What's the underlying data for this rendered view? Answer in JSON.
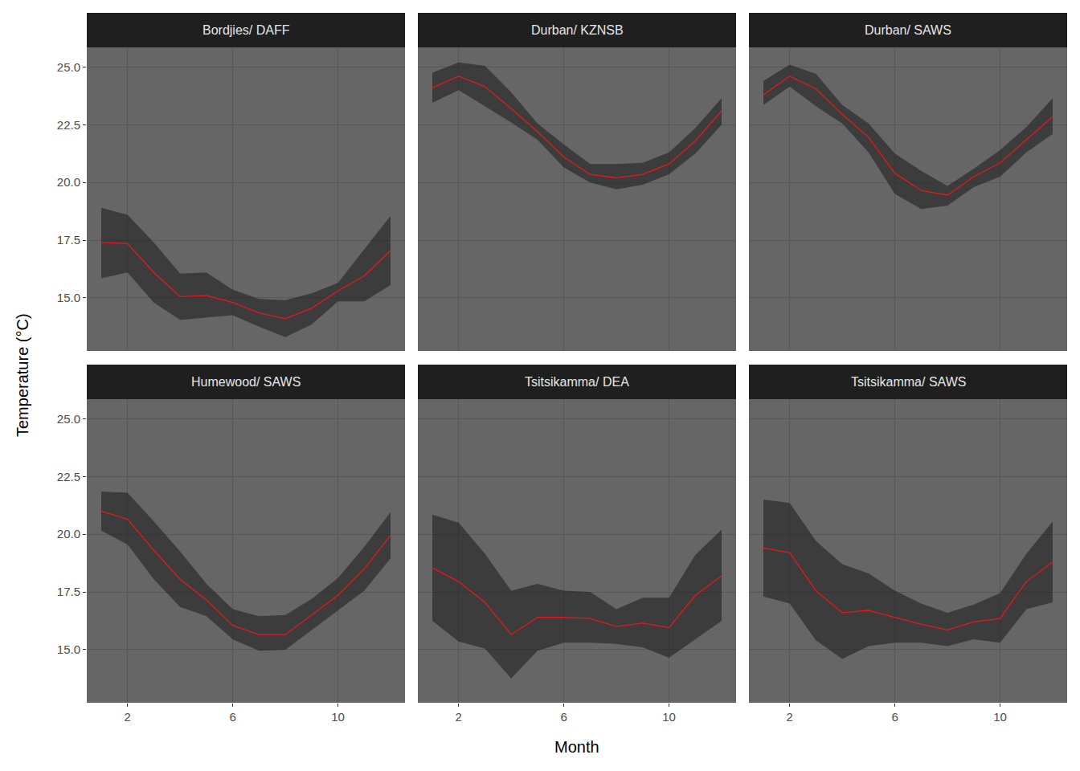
{
  "chart_data": {
    "type": "line",
    "x_label": "Month",
    "y_label": "Temperature (°C)",
    "x": [
      1,
      2,
      3,
      4,
      5,
      6,
      7,
      8,
      9,
      10,
      11,
      12
    ],
    "xlim": [
      0.45,
      12.55
    ],
    "xticks": [
      2,
      6,
      10
    ],
    "ylim": [
      12.7,
      25.85
    ],
    "yticks": [
      {
        "value": 15,
        "label": "15.0"
      },
      17.5,
      {
        "value": 20,
        "label": "20.0"
      },
      22.5,
      {
        "value": 25,
        "label": "25.0"
      }
    ],
    "grid": true,
    "color": "#e41a1c",
    "panels": [
      {
        "title": "Bordjies/ DAFF",
        "values": [
          17.4,
          17.35,
          16.1,
          15.05,
          15.1,
          14.8,
          14.35,
          14.1,
          14.55,
          15.3,
          15.95,
          17.05
        ],
        "lower": [
          15.85,
          16.1,
          14.8,
          14.05,
          14.15,
          14.25,
          13.75,
          13.3,
          13.85,
          14.85,
          14.85,
          15.55
        ],
        "upper": [
          18.9,
          18.6,
          17.4,
          16.05,
          16.1,
          15.35,
          14.95,
          14.9,
          15.2,
          15.65,
          17.1,
          18.55
        ]
      },
      {
        "title": "Durban/ KZNSB",
        "values": [
          24.1,
          24.6,
          24.15,
          23.2,
          22.2,
          21.1,
          20.35,
          20.2,
          20.35,
          20.8,
          21.8,
          23.1
        ],
        "lower": [
          23.45,
          24.0,
          23.3,
          22.6,
          21.85,
          20.65,
          20.0,
          19.7,
          19.9,
          20.35,
          21.25,
          22.5
        ],
        "upper": [
          24.75,
          25.2,
          25.05,
          23.9,
          22.55,
          21.65,
          20.8,
          20.8,
          20.85,
          21.3,
          22.35,
          23.65
        ]
      },
      {
        "title": "Durban/ SAWS",
        "values": [
          23.8,
          24.6,
          24.05,
          22.95,
          21.95,
          20.4,
          19.65,
          19.45,
          20.25,
          20.85,
          21.85,
          22.85
        ],
        "lower": [
          23.35,
          24.15,
          23.3,
          22.55,
          21.3,
          19.5,
          18.85,
          19.0,
          19.8,
          20.25,
          21.3,
          22.1
        ],
        "upper": [
          24.4,
          25.1,
          24.7,
          23.35,
          22.55,
          21.25,
          20.5,
          19.85,
          20.6,
          21.4,
          22.4,
          23.65
        ]
      },
      {
        "title": "Humewood/ SAWS",
        "values": [
          21.0,
          20.65,
          19.3,
          18.05,
          17.15,
          16.05,
          15.65,
          15.65,
          16.5,
          17.35,
          18.5,
          19.95
        ],
        "lower": [
          20.15,
          19.55,
          18.05,
          16.85,
          16.45,
          15.45,
          14.95,
          15.0,
          15.85,
          16.7,
          17.55,
          18.95
        ],
        "upper": [
          21.85,
          21.8,
          20.55,
          19.25,
          17.85,
          16.75,
          16.45,
          16.5,
          17.2,
          18.1,
          19.45,
          20.95
        ]
      },
      {
        "title": "Tsitsikamma/ DEA",
        "values": [
          18.55,
          17.95,
          17.05,
          15.65,
          16.4,
          16.4,
          16.35,
          16.0,
          16.15,
          15.95,
          17.35,
          18.2
        ],
        "lower": [
          16.25,
          15.35,
          15.05,
          13.75,
          14.95,
          15.3,
          15.3,
          15.25,
          15.1,
          14.65,
          15.45,
          16.25
        ],
        "upper": [
          20.85,
          20.5,
          19.15,
          17.55,
          17.85,
          17.55,
          17.5,
          16.75,
          17.25,
          17.25,
          19.1,
          20.2
        ]
      },
      {
        "title": "Tsitsikamma/ SAWS",
        "values": [
          19.4,
          19.2,
          17.55,
          16.6,
          16.7,
          16.4,
          16.1,
          15.85,
          16.2,
          16.35,
          17.95,
          18.8
        ],
        "lower": [
          17.3,
          17.0,
          15.4,
          14.6,
          15.15,
          15.3,
          15.3,
          15.15,
          15.45,
          15.3,
          16.75,
          17.05
        ],
        "upper": [
          21.5,
          21.35,
          19.7,
          18.7,
          18.3,
          17.55,
          17.0,
          16.6,
          16.95,
          17.45,
          19.15,
          20.55
        ]
      }
    ]
  }
}
